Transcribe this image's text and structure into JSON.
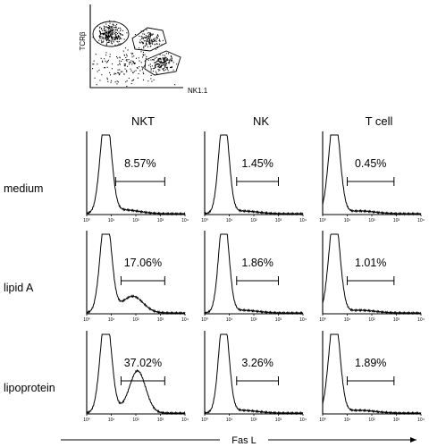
{
  "chart_data": {
    "type": "flow-cytometry-panel",
    "dot_plot": {
      "ylabel": "TCRβ",
      "xlabel": "NK1.1",
      "gates": [
        "NKT",
        "T cell",
        "NK"
      ]
    },
    "columns": [
      "NKT",
      "NK",
      "T cell"
    ],
    "rows": [
      "medium",
      "lipid A",
      "lipoprotein"
    ],
    "x_tick_labels": [
      "10⁰",
      "10¹",
      "10²",
      "10³",
      "10⁴"
    ],
    "xlabel": "Fas L",
    "x_scale": "log",
    "xlim": [
      1,
      10000
    ],
    "percentages": [
      [
        "8.57%",
        "1.45%",
        "0.45%"
      ],
      [
        "17.06%",
        "1.86%",
        "1.01%"
      ],
      [
        "37.02%",
        "3.26%",
        "1.89%"
      ]
    ],
    "gate_ranges": [
      [
        [
          15,
          1500
        ],
        [
          20,
          1000
        ],
        [
          10,
          800
        ]
      ],
      [
        [
          25,
          1500
        ],
        [
          20,
          1000
        ],
        [
          10,
          800
        ]
      ],
      [
        [
          25,
          1500
        ],
        [
          20,
          1000
        ],
        [
          10,
          800
        ]
      ]
    ],
    "histograms": [
      [
        {
          "peak": 6,
          "width": 0.22,
          "second": null
        },
        {
          "peak": 6,
          "width": 0.2,
          "second": null
        },
        {
          "peak": 3,
          "width": 0.22,
          "second": null
        }
      ],
      [
        {
          "peak": 6,
          "width": 0.22,
          "second": {
            "center": 80,
            "height": 0.17,
            "width": 0.4
          }
        },
        {
          "peak": 6,
          "width": 0.2,
          "second": null
        },
        {
          "peak": 3,
          "width": 0.22,
          "second": null
        }
      ],
      [
        {
          "peak": 6,
          "width": 0.22,
          "second": {
            "center": 120,
            "height": 0.5,
            "width": 0.32
          }
        },
        {
          "peak": 6,
          "width": 0.2,
          "second": null
        },
        {
          "peak": 3,
          "width": 0.22,
          "second": null
        }
      ]
    ]
  }
}
